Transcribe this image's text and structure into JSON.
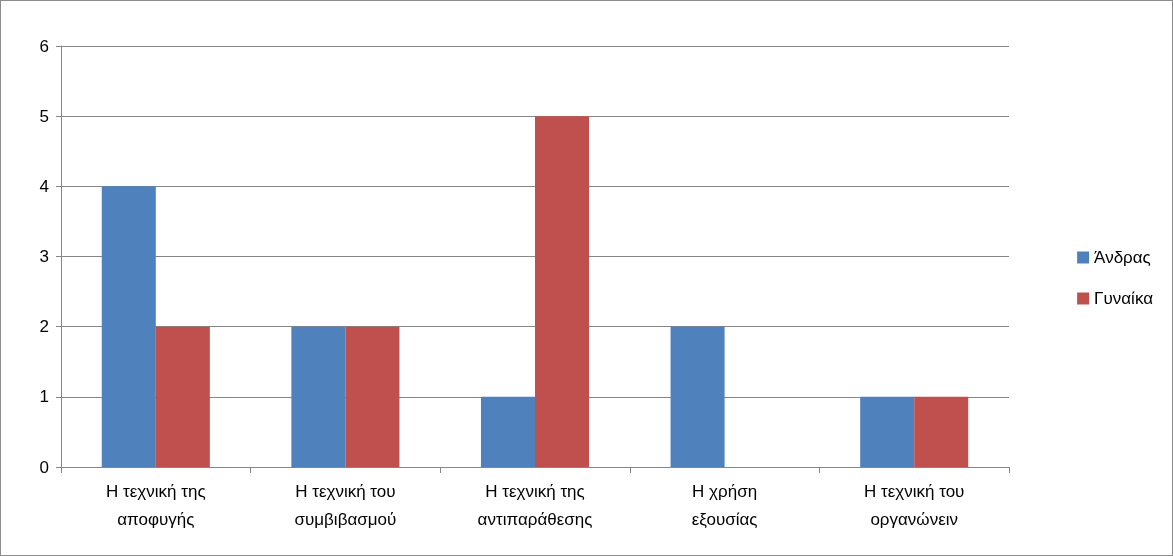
{
  "chart_data": {
    "type": "bar",
    "categories": [
      "Η τεχνική της αποφυγής",
      "Η τεχνική του συμβιβασμού",
      "Η τεχνική της αντιπαράθεσης",
      "Η χρήση εξουσίας",
      "Η τεχνική του οργανώνειν"
    ],
    "series": [
      {
        "name": "Άνδρας",
        "color": "#4f81bd",
        "values": [
          4,
          2,
          1,
          2,
          1
        ]
      },
      {
        "name": "Γυναίκα",
        "color": "#c0504d",
        "values": [
          2,
          2,
          5,
          0,
          1
        ]
      }
    ],
    "ylim": [
      0,
      6
    ],
    "yticks": [
      0,
      1,
      2,
      3,
      4,
      5,
      6
    ],
    "grid": "y",
    "legend": "right"
  }
}
